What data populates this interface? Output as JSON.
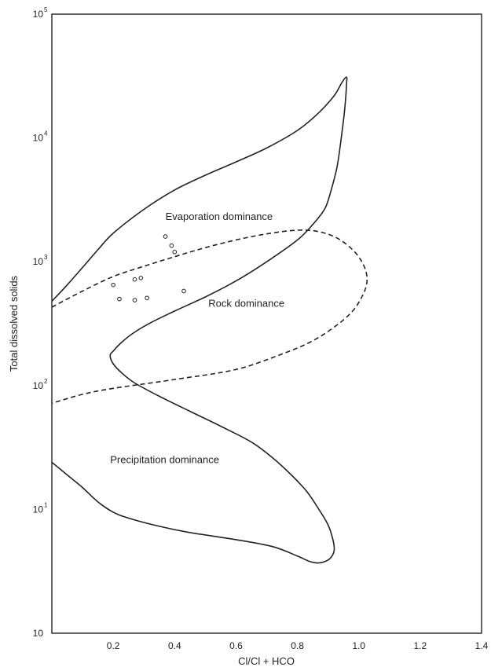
{
  "chart_data": {
    "type": "scatter",
    "title": "",
    "xlabel": "Cl/Cl + HCO",
    "ylabel": "Total dissolved solids",
    "xlim": [
      0,
      1.4
    ],
    "ylim": [
      1,
      100000
    ],
    "yscale": "log",
    "grid": false,
    "x_ticks": [
      {
        "value": 0.2,
        "label": "0.2"
      },
      {
        "value": 0.4,
        "label": "0.4"
      },
      {
        "value": 0.6,
        "label": "0.6"
      },
      {
        "value": 0.8,
        "label": "0.8"
      },
      {
        "value": 1.0,
        "label": "1.0"
      },
      {
        "value": 1.2,
        "label": "1.2"
      },
      {
        "value": 1.4,
        "label": "1.4"
      }
    ],
    "y_ticks": [
      {
        "value": 1,
        "base": "10",
        "exp": ""
      },
      {
        "value": 10,
        "base": "10",
        "exp": "1"
      },
      {
        "value": 100,
        "base": "10",
        "exp": "2"
      },
      {
        "value": 1000,
        "base": "10",
        "exp": "3"
      },
      {
        "value": 10000,
        "base": "10",
        "exp": "4"
      },
      {
        "value": 100000,
        "base": "10",
        "exp": "5"
      }
    ],
    "region_labels": [
      {
        "text": "Evaporation dominance",
        "x": 0.37,
        "y": 2300
      },
      {
        "text": "Rock dominance",
        "x": 0.51,
        "y": 460
      },
      {
        "text": "Precipitation dominance",
        "x": 0.19,
        "y": 25
      }
    ],
    "boundaries": [
      {
        "style": "solid",
        "points": [
          [
            0.0,
            480
          ],
          [
            0.05,
            650
          ],
          [
            0.1,
            900
          ],
          [
            0.15,
            1250
          ],
          [
            0.2,
            1700
          ],
          [
            0.3,
            2650
          ],
          [
            0.4,
            3800
          ],
          [
            0.5,
            5000
          ],
          [
            0.6,
            6400
          ],
          [
            0.7,
            8300
          ],
          [
            0.8,
            11500
          ],
          [
            0.87,
            16000
          ],
          [
            0.92,
            22000
          ],
          [
            0.945,
            28000
          ],
          [
            0.96,
            31000
          ],
          [
            0.96,
            27000
          ],
          [
            0.955,
            18000
          ],
          [
            0.945,
            11000
          ],
          [
            0.93,
            6000
          ],
          [
            0.91,
            3800
          ],
          [
            0.89,
            2700
          ],
          [
            0.85,
            2000
          ],
          [
            0.8,
            1500
          ],
          [
            0.7,
            1000
          ],
          [
            0.6,
            700
          ],
          [
            0.5,
            520
          ],
          [
            0.4,
            400
          ],
          [
            0.32,
            320
          ],
          [
            0.26,
            260
          ],
          [
            0.22,
            215
          ],
          [
            0.2,
            190
          ],
          [
            0.19,
            175
          ],
          [
            0.2,
            150
          ],
          [
            0.23,
            125
          ],
          [
            0.27,
            105
          ],
          [
            0.35,
            82
          ],
          [
            0.45,
            62
          ],
          [
            0.55,
            47
          ],
          [
            0.65,
            35
          ],
          [
            0.72,
            26
          ],
          [
            0.78,
            19
          ],
          [
            0.83,
            14
          ],
          [
            0.87,
            10
          ],
          [
            0.9,
            7.5
          ],
          [
            0.915,
            5.8
          ],
          [
            0.92,
            4.8
          ],
          [
            0.915,
            4.3
          ],
          [
            0.9,
            3.9
          ],
          [
            0.87,
            3.7
          ],
          [
            0.84,
            3.8
          ],
          [
            0.8,
            4.2
          ],
          [
            0.72,
            5.0
          ],
          [
            0.6,
            5.7
          ],
          [
            0.45,
            6.5
          ],
          [
            0.35,
            7.3
          ],
          [
            0.25,
            8.5
          ],
          [
            0.2,
            9.5
          ],
          [
            0.15,
            11.5
          ],
          [
            0.1,
            15
          ],
          [
            0.05,
            19
          ],
          [
            0.0,
            24
          ]
        ]
      },
      {
        "style": "dashed",
        "points": [
          [
            0.0,
            430
          ],
          [
            0.1,
            580
          ],
          [
            0.2,
            760
          ],
          [
            0.3,
            920
          ],
          [
            0.4,
            1100
          ],
          [
            0.5,
            1300
          ],
          [
            0.6,
            1500
          ],
          [
            0.7,
            1680
          ],
          [
            0.8,
            1800
          ],
          [
            0.87,
            1750
          ],
          [
            0.93,
            1550
          ],
          [
            0.98,
            1250
          ],
          [
            1.01,
            1000
          ],
          [
            1.025,
            800
          ],
          [
            1.025,
            650
          ],
          [
            1.01,
            520
          ],
          [
            0.98,
            400
          ],
          [
            0.93,
            310
          ],
          [
            0.85,
            230
          ],
          [
            0.75,
            180
          ],
          [
            0.6,
            135
          ],
          [
            0.4,
            112
          ],
          [
            0.2,
            95
          ],
          [
            0.1,
            85
          ],
          [
            0.0,
            72
          ]
        ]
      }
    ],
    "samples": {
      "x": [
        0.37,
        0.39,
        0.4,
        0.2,
        0.27,
        0.29,
        0.22,
        0.27,
        0.31,
        0.43
      ],
      "y": [
        1600,
        1350,
        1200,
        650,
        720,
        740,
        500,
        490,
        510,
        580
      ]
    }
  }
}
